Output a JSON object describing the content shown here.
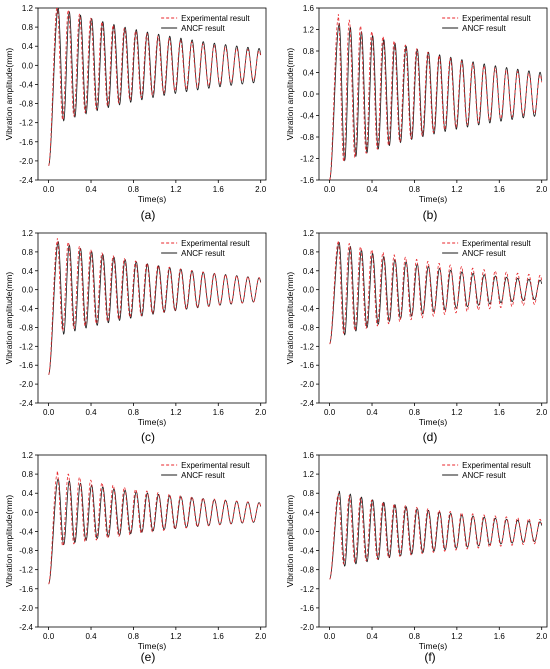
{
  "figure": {
    "panel_labels": [
      "(a)",
      "(b)",
      "(c)",
      "(d)",
      "(e)",
      "(f)"
    ]
  },
  "colors": {
    "experimental": "#e8262b",
    "ancf": "#1a1a1a",
    "axis": "#000000"
  },
  "chart_data": [
    {
      "type": "line",
      "panel": "(a)",
      "xlabel": "Time(s)",
      "ylabel": "Vibration amplitude(mm)",
      "xlim": [
        -0.1,
        2.05
      ],
      "ylim": [
        -2.4,
        1.2
      ],
      "xticks": [
        0.0,
        0.4,
        0.8,
        1.2,
        1.6,
        2.0
      ],
      "yticks": [
        -2.4,
        -2.0,
        -1.6,
        -1.2,
        -0.8,
        -0.4,
        0.0,
        0.4,
        0.8,
        1.2
      ],
      "legend": "top-right",
      "grid": false,
      "series": [
        {
          "name": "Experimental result",
          "style": "dashed",
          "start": -2.1,
          "peak_t": 0.08,
          "peak": 1.22,
          "trough": -1.15,
          "end_amp": 0.3,
          "freq": 9.45
        },
        {
          "name": "ANCF result",
          "style": "solid",
          "start": -2.1,
          "peak_t": 0.09,
          "peak": 1.2,
          "trough": -1.2,
          "end_amp": 0.35,
          "freq": 9.5
        }
      ]
    },
    {
      "type": "line",
      "panel": "(b)",
      "xlabel": "Time(s)",
      "ylabel": "Vibration amplitude(mm)",
      "xlim": [
        -0.1,
        2.05
      ],
      "ylim": [
        -1.6,
        1.6
      ],
      "xticks": [
        0.0,
        0.4,
        0.8,
        1.2,
        1.6,
        2.0
      ],
      "yticks": [
        -1.6,
        -1.2,
        -0.8,
        -0.4,
        0.0,
        0.4,
        0.8,
        1.2,
        1.6
      ],
      "legend": "top-right",
      "grid": false,
      "series": [
        {
          "name": "Experimental result",
          "style": "dashed",
          "start": -1.6,
          "peak_t": 0.08,
          "peak": 1.4,
          "trough": -1.2,
          "end_amp": 0.35,
          "freq": 9.45
        },
        {
          "name": "ANCF result",
          "style": "solid",
          "start": -1.6,
          "peak_t": 0.09,
          "peak": 1.3,
          "trough": -1.25,
          "end_amp": 0.4,
          "freq": 9.5
        }
      ]
    },
    {
      "type": "line",
      "panel": "(c)",
      "xlabel": "Time(s)",
      "ylabel": "Vibration amplitude(mm)",
      "xlim": [
        -0.1,
        2.05
      ],
      "ylim": [
        -2.4,
        1.2
      ],
      "xticks": [
        0.0,
        0.4,
        0.8,
        1.2,
        1.6,
        2.0
      ],
      "yticks": [
        -2.4,
        -2.0,
        -1.6,
        -1.2,
        -0.8,
        -0.4,
        0.0,
        0.4,
        0.8,
        1.2
      ],
      "legend": "top-right",
      "grid": false,
      "series": [
        {
          "name": "Experimental result",
          "style": "dashed",
          "start": -1.8,
          "peak_t": 0.08,
          "peak": 1.0,
          "trough": -0.8,
          "end_amp": 0.25,
          "freq": 9.45
        },
        {
          "name": "ANCF result",
          "style": "solid",
          "start": -1.8,
          "peak_t": 0.09,
          "peak": 1.0,
          "trough": -0.95,
          "end_amp": 0.25,
          "freq": 9.5
        }
      ]
    },
    {
      "type": "line",
      "panel": "(d)",
      "xlabel": "Time(s)",
      "ylabel": "Vibration amplitude(mm)",
      "xlim": [
        -0.1,
        2.05
      ],
      "ylim": [
        -2.4,
        1.2
      ],
      "xticks": [
        0.0,
        0.4,
        0.8,
        1.2,
        1.6,
        2.0
      ],
      "yticks": [
        -2.4,
        -2.0,
        -1.6,
        -1.2,
        -0.8,
        -0.4,
        0.0,
        0.4,
        0.8,
        1.2
      ],
      "legend": "top-right",
      "grid": false,
      "series": [
        {
          "name": "Experimental result",
          "style": "dashed",
          "start": -1.15,
          "peak_t": 0.08,
          "peak": 1.0,
          "trough": -0.9,
          "end_amp": 0.3,
          "freq": 9.45
        },
        {
          "name": "ANCF result",
          "style": "solid",
          "start": -1.15,
          "peak_t": 0.09,
          "peak": 1.0,
          "trough": -1.0,
          "end_amp": 0.2,
          "freq": 9.5
        }
      ]
    },
    {
      "type": "line",
      "panel": "(e)",
      "xlabel": "Time(s)",
      "ylabel": "Vibration amplitude(mm)",
      "xlim": [
        -0.1,
        2.05
      ],
      "ylim": [
        -2.4,
        1.2
      ],
      "xticks": [
        0.0,
        0.4,
        0.8,
        1.2,
        1.6,
        2.0
      ],
      "yticks": [
        -2.4,
        -2.0,
        -1.6,
        -1.2,
        -0.8,
        -0.4,
        0.0,
        0.4,
        0.8,
        1.2
      ],
      "legend": "top-right",
      "grid": false,
      "series": [
        {
          "name": "Experimental result",
          "style": "dashed",
          "start": -1.5,
          "peak_t": 0.08,
          "peak": 0.8,
          "trough": -0.65,
          "end_amp": 0.2,
          "freq": 9.45
        },
        {
          "name": "ANCF result",
          "style": "solid",
          "start": -1.5,
          "peak_t": 0.09,
          "peak": 0.7,
          "trough": -0.7,
          "end_amp": 0.2,
          "freq": 9.5
        }
      ]
    },
    {
      "type": "line",
      "panel": "(f)",
      "xlabel": "Time(s)",
      "ylabel": "Vibration amplitude(mm)",
      "xlim": [
        -0.1,
        2.05
      ],
      "ylim": [
        -2.0,
        1.6
      ],
      "xticks": [
        0.0,
        0.4,
        0.8,
        1.2,
        1.6,
        2.0
      ],
      "yticks": [
        -2.0,
        -1.6,
        -1.2,
        -0.8,
        -0.4,
        0.0,
        0.4,
        0.8,
        1.2,
        1.6
      ],
      "legend": "top-right",
      "grid": false,
      "series": [
        {
          "name": "Experimental result",
          "style": "dashed",
          "start": -1.0,
          "peak_t": 0.08,
          "peak": 0.75,
          "trough": -0.65,
          "end_amp": 0.25,
          "freq": 9.45
        },
        {
          "name": "ANCF result",
          "style": "solid",
          "start": -1.0,
          "peak_t": 0.09,
          "peak": 0.8,
          "trough": -0.7,
          "end_amp": 0.2,
          "freq": 9.5
        }
      ]
    }
  ]
}
